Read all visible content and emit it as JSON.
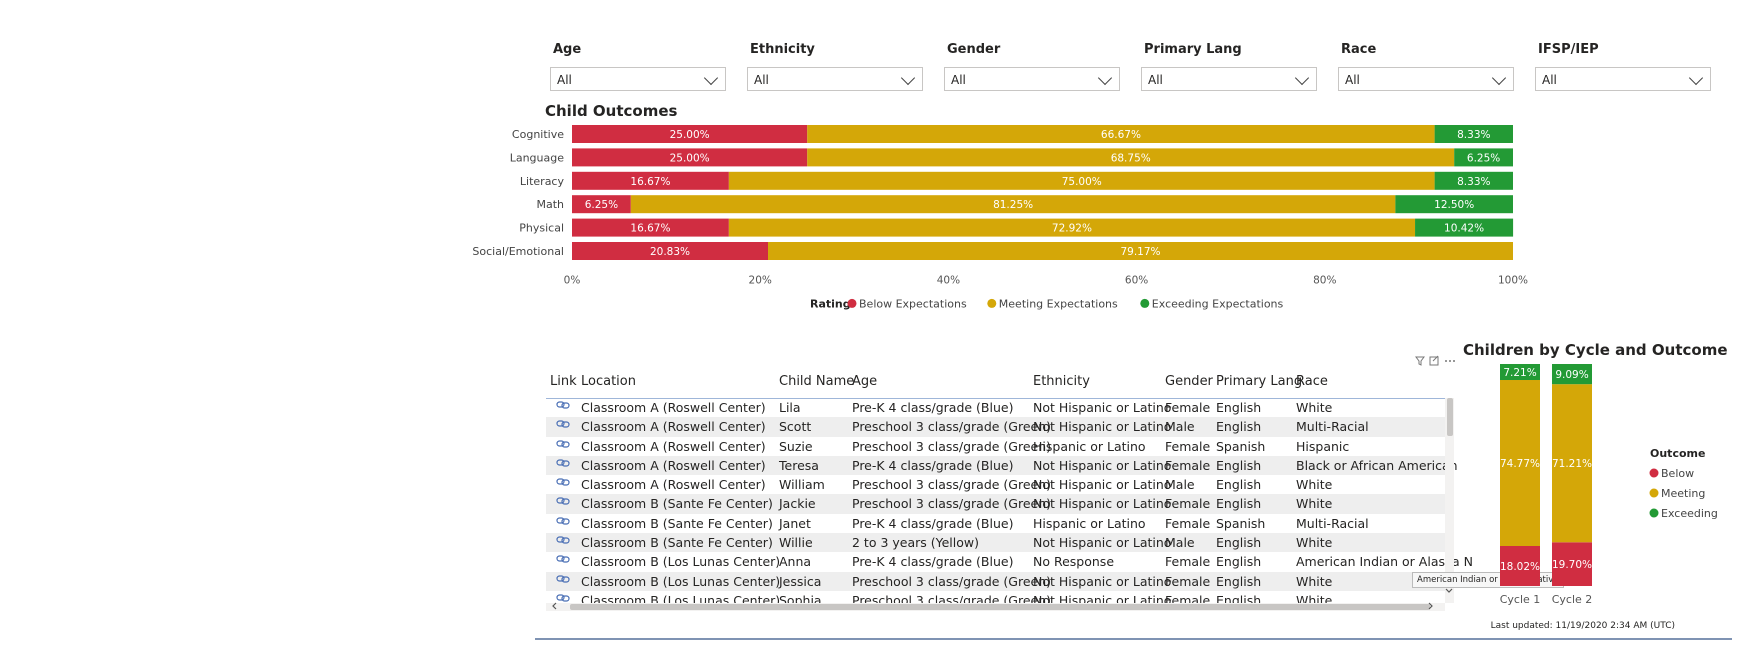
{
  "filters": [
    {
      "label": "Age",
      "value": "All"
    },
    {
      "label": "Ethnicity",
      "value": "All"
    },
    {
      "label": "Gender",
      "value": "All"
    },
    {
      "label": "Primary Lang",
      "value": "All"
    },
    {
      "label": "Race",
      "value": "All"
    },
    {
      "label": "IFSP/IEP",
      "value": "All"
    }
  ],
  "outcomes_title": "Child Outcomes",
  "cycle_title": "Children by Cycle and Outcome",
  "colors": {
    "below": "#d02d41",
    "meeting": "#d4a708",
    "exceeding": "#239a35"
  },
  "chart_data": [
    {
      "type": "bar",
      "orientation": "horizontal-stacked-100",
      "title": "Child Outcomes",
      "categories": [
        "Cognitive",
        "Language",
        "Literacy",
        "Math",
        "Physical",
        "Social/Emotional"
      ],
      "series": [
        {
          "name": "Below Expectations",
          "values": [
            25.0,
            25.0,
            16.67,
            6.25,
            16.67,
            20.83
          ],
          "labels": [
            "25.00%",
            "25.00%",
            "16.67%",
            "6.25%",
            "16.67%",
            "20.83%"
          ]
        },
        {
          "name": "Meeting Expectations",
          "values": [
            66.67,
            68.75,
            75.0,
            81.25,
            72.92,
            79.17
          ],
          "labels": [
            "66.67%",
            "68.75%",
            "75.00%",
            "81.25%",
            "72.92%",
            "79.17%"
          ]
        },
        {
          "name": "Exceeding Expectations",
          "values": [
            8.33,
            6.25,
            8.33,
            12.5,
            10.42,
            0
          ],
          "labels": [
            "8.33%",
            "6.25%",
            "8.33%",
            "12.50%",
            "10.42%",
            ""
          ]
        }
      ],
      "xticks": [
        "0%",
        "20%",
        "40%",
        "60%",
        "80%",
        "100%"
      ],
      "xlim": [
        0,
        100
      ],
      "legend_title": "Rating",
      "legend_placement": "bottom"
    },
    {
      "type": "bar",
      "orientation": "vertical-stacked-100",
      "title": "Children by Cycle and Outcome",
      "categories": [
        "Cycle 1",
        "Cycle 2"
      ],
      "series": [
        {
          "name": "Below",
          "values": [
            18.02,
            19.7
          ],
          "labels": [
            "18.02%",
            "19.70%"
          ]
        },
        {
          "name": "Meeting",
          "values": [
            74.77,
            71.21
          ],
          "labels": [
            "74.77%",
            "71.21%"
          ]
        },
        {
          "name": "Exceeding",
          "values": [
            7.21,
            9.09
          ],
          "labels": [
            "7.21%",
            "9.09%"
          ]
        }
      ],
      "legend_title": "Outcome",
      "legend_placement": "right"
    }
  ],
  "table": {
    "columns": [
      "Link",
      "Location",
      "Child Name",
      "Age",
      "Ethnicity",
      "Gender",
      "Primary Lang",
      "Race"
    ],
    "rows": [
      [
        "Classroom A (Roswell Center)",
        "Lila",
        "Pre-K 4 class/grade (Blue)",
        "Not Hispanic or Latino",
        "Female",
        "English",
        "White"
      ],
      [
        "Classroom A (Roswell Center)",
        "Scott",
        "Preschool 3 class/grade (Green)",
        "Not Hispanic or Latino",
        "Male",
        "English",
        "Multi-Racial"
      ],
      [
        "Classroom A (Roswell Center)",
        "Suzie",
        "Preschool 3 class/grade (Green)",
        "Hispanic or Latino",
        "Female",
        "Spanish",
        "Hispanic"
      ],
      [
        "Classroom A (Roswell Center)",
        "Teresa",
        "Pre-K 4 class/grade (Blue)",
        "Not Hispanic or Latino",
        "Female",
        "English",
        "Black or African American"
      ],
      [
        "Classroom A (Roswell Center)",
        "William",
        "Preschool 3 class/grade (Green)",
        "Not Hispanic or Latino",
        "Male",
        "English",
        "White"
      ],
      [
        "Classroom B (Sante Fe Center)",
        "Jackie",
        "Preschool 3 class/grade (Green)",
        "Not Hispanic or Latino",
        "Female",
        "English",
        "White"
      ],
      [
        "Classroom B (Sante Fe Center)",
        "Janet",
        "Pre-K 4 class/grade (Blue)",
        "Hispanic or Latino",
        "Female",
        "Spanish",
        "Multi-Racial"
      ],
      [
        "Classroom B (Sante Fe Center)",
        "Willie",
        "2 to 3 years (Yellow)",
        "Not Hispanic or Latino",
        "Male",
        "English",
        "White"
      ],
      [
        "Classroom B (Los Lunas Center)",
        "Anna",
        "Pre-K 4 class/grade (Blue)",
        "No Response",
        "Female",
        "English",
        "American Indian or Alaska N"
      ],
      [
        "Classroom B (Los Lunas Center)",
        "Jessica",
        "Preschool 3 class/grade (Green)",
        "Not Hispanic or Latino",
        "Female",
        "English",
        "White"
      ],
      [
        "Classroom B (Los Lunas Center)",
        "Sophia",
        "Preschool 3 class/grade (Green)",
        "Not Hispanic or Latino",
        "Female",
        "English",
        "White"
      ]
    ]
  },
  "tooltip_text": "American Indian or Alaska Native",
  "last_updated": "Last updated: 11/19/2020 2:34 AM (UTC)"
}
